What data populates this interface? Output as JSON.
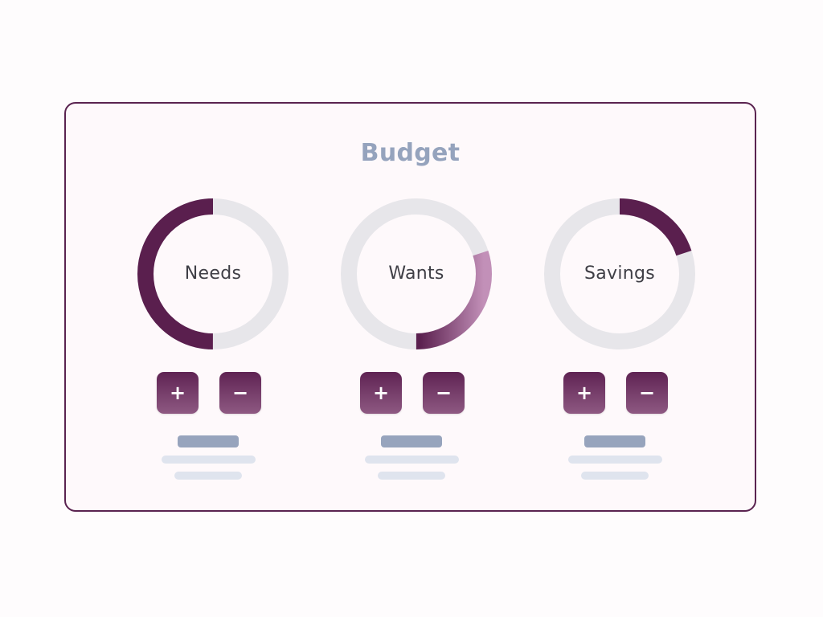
{
  "card": {
    "title": "Budget"
  },
  "colors": {
    "card_border": "#5a2350",
    "title": "#95a3bd",
    "ring_track": "#e7e6ea",
    "ring_dark": "#5a1f4e",
    "ring_light": "#c290b8",
    "button": "#6e3164",
    "skeleton_dark": "#97a4bd",
    "skeleton_light": "#dfe4ee"
  },
  "categories": [
    {
      "label": "Needs",
      "fraction": 0.5,
      "start_fraction": 0.5,
      "plus_label": "+",
      "minus_label": "−"
    },
    {
      "label": "Wants",
      "fraction": 0.3,
      "start_fraction": 0.2,
      "plus_label": "+",
      "minus_label": "−"
    },
    {
      "label": "Savings",
      "fraction": 0.2,
      "start_fraction": 0.0,
      "plus_label": "+",
      "minus_label": "−"
    }
  ]
}
